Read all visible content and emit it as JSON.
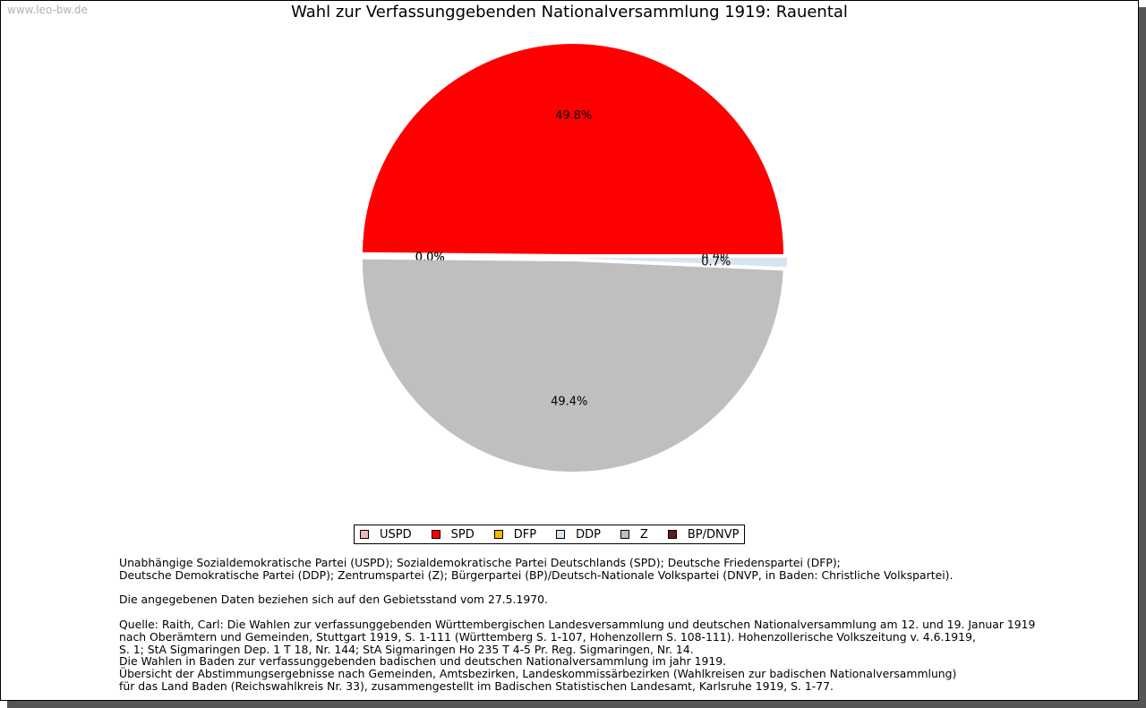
{
  "watermark": "www.leo-bw.de",
  "chart_data": {
    "type": "pie",
    "title": "Wahl zur Verfassunggebenden Nationalversammlung 1919: Rauental",
    "slices": [
      {
        "name": "USPD",
        "value": 0.0,
        "label": "0.0%",
        "color": "#f0b8b8"
      },
      {
        "name": "SPD",
        "value": 49.8,
        "label": "49.8%",
        "color": "#ff0000"
      },
      {
        "name": "DFP",
        "value": 0.0,
        "label": "0.0%",
        "color": "#f5b800"
      },
      {
        "name": "BP/DNVP",
        "value": 0.0,
        "label": "0.0%",
        "color": "#5a1e1e"
      },
      {
        "name": "Z",
        "value": 49.4,
        "label": "49.4%",
        "color": "#bfbfbf"
      },
      {
        "name": "DDP",
        "value": 0.7,
        "label": "0.7%",
        "color": "#d6e4f2"
      }
    ],
    "legend": [
      {
        "name": "USPD",
        "color": "#f0b8b8"
      },
      {
        "name": "SPD",
        "color": "#ff0000"
      },
      {
        "name": "DFP",
        "color": "#f5b800"
      },
      {
        "name": "DDP",
        "color": "#d6e4f2"
      },
      {
        "name": "Z",
        "color": "#bfbfbf"
      },
      {
        "name": "BP/DNVP",
        "color": "#5a1e1e"
      }
    ],
    "legend_position": "bottom"
  },
  "notes": {
    "abbrev": [
      "Unabhängige Sozialdemokratische Partei (USPD); Sozialdemokratische Partei Deutschlands (SPD); Deutsche Friedenspartei (DFP);",
      "Deutsche Demokratische Partei (DDP); Zentrumspartei (Z); Bürgerpartei (BP)/Deutsch-Nationale Volkspartei (DNVP, in Baden: Christliche Volkspartei)."
    ],
    "gebietsstand": "Die angegebenen Daten beziehen sich auf den Gebietsstand vom 27.5.1970.",
    "source": [
      "Quelle: Raith, Carl: Die Wahlen zur verfassunggebenden Württembergischen Landesversammlung und deutschen Nationalversammlung am 12. und 19. Januar 1919",
      "nach Oberämtern und Gemeinden, Stuttgart 1919, S. 1-111 (Württemberg S. 1-107, Hohenzollern S. 108-111). Hohenzollerische Volkszeitung v. 4.6.1919,",
      "S. 1; StA Sigmaringen Dep. 1 T 18, Nr. 144; StA Sigmaringen Ho 235 T 4-5 Pr. Reg. Sigmaringen, Nr. 14.",
      "Die Wahlen in Baden zur verfassunggebenden badischen und deutschen Nationalversammlung im jahr 1919.",
      "Übersicht der Abstimmungsergebnisse nach Gemeinden, Amtsbezirken, Landeskommissärbezirken (Wahlkreisen zur badischen Nationalversammlung)",
      "für das Land Baden (Reichswahlkreis Nr. 33), zusammengestellt im Badischen Statistischen Landesamt, Karlsruhe 1919, S. 1-77."
    ]
  }
}
